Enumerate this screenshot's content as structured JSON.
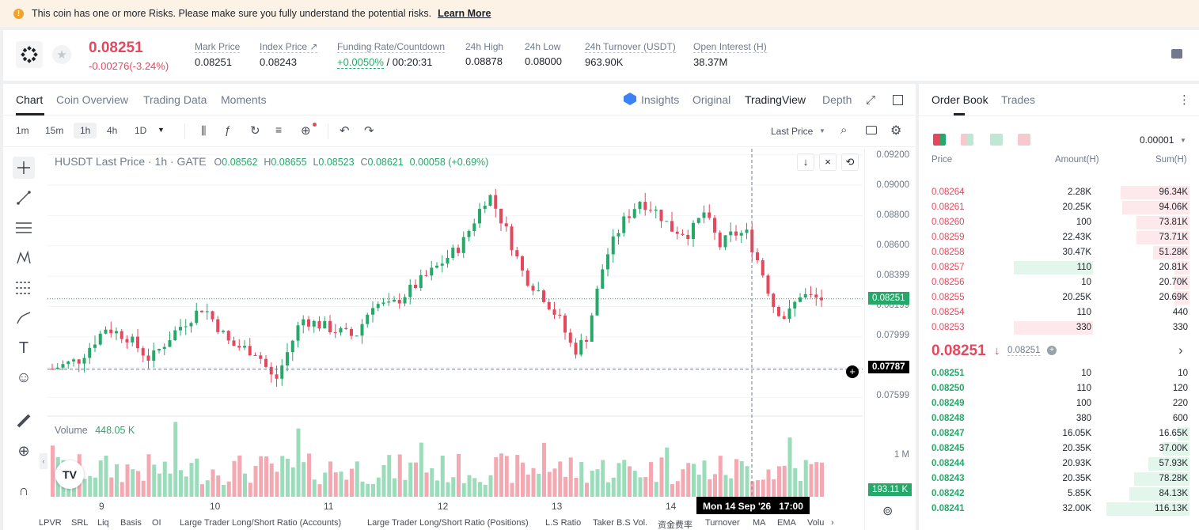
{
  "banner": {
    "message": "This coin has one or more Risks. Please make sure you fully understand the potential risks.",
    "link": "Learn More"
  },
  "ticker": {
    "price": "0.08251",
    "change": "-0.00276(-3.24%)",
    "stats": [
      {
        "label": "Mark Price",
        "value": "0.08251"
      },
      {
        "label": "Index Price ↗",
        "value": "0.08243"
      },
      {
        "label": "Funding Rate/Countdown",
        "value_rate": "+0.0050%",
        "value_countdown": "/ 00:20:31"
      },
      {
        "label": "24h High",
        "value": "0.08878"
      },
      {
        "label": "24h Low",
        "value": "0.08000"
      },
      {
        "label": "24h Turnover (USDT)",
        "value": "963.90K"
      },
      {
        "label": "Open Interest (H)",
        "value": "38.37M"
      }
    ]
  },
  "chart_tabs": [
    "Chart",
    "Coin Overview",
    "Trading Data",
    "Moments"
  ],
  "view_tabs": [
    "Insights",
    "Original",
    "TradingView",
    "Depth"
  ],
  "timeframes": [
    "1m",
    "15m",
    "1h",
    "4h",
    "1D"
  ],
  "price_type": "Last Price",
  "legend": {
    "symbol": "HUSDT Last Price · 1h · GATE",
    "o_label": "O",
    "o": "0.08562",
    "h_label": "H",
    "h": "0.08655",
    "l_label": "L",
    "l": "0.08523",
    "c_label": "C",
    "c": "0.08621",
    "chg": "0.00058 (+0.69%)"
  },
  "volume": {
    "label": "Volume",
    "value": "448.05 K",
    "axis_label": "1 M",
    "last_tag": "193.11 K"
  },
  "price_axis": [
    "0.09200",
    "0.09000",
    "0.08800",
    "0.08600",
    "0.08399",
    "0.08199",
    "0.07999",
    "0.07599"
  ],
  "last_price_tag": "0.08251",
  "crosshair_price": "0.07787",
  "x_axis": [
    "9",
    "10",
    "11",
    "12",
    "13",
    "14"
  ],
  "crosshair_time": "Mon 14 Sep '26   17:00",
  "indicators": [
    "LPVR",
    "SRL",
    "Liq",
    "Basis",
    "OI",
    "Large Trader Long/Short Ratio (Accounts)",
    "Large Trader Long/Short Ratio (Positions)",
    "L.S Ratio",
    "Taker B.S Vol.",
    "资金费率",
    "Turnover",
    "MA",
    "EMA",
    "Volu"
  ],
  "orderbook": {
    "tabs": [
      "Order Book",
      "Trades"
    ],
    "precision": "0.00001",
    "headers": [
      "Price",
      "Amount(H)",
      "Sum(H)"
    ],
    "asks": [
      {
        "price": "0.08264",
        "amount": "2.28K",
        "sum": "96.34K",
        "depth": 0.83,
        "amt_depth": 0
      },
      {
        "price": "0.08261",
        "amount": "20.25K",
        "sum": "94.06K",
        "depth": 0.81,
        "amt_depth": 0
      },
      {
        "price": "0.08260",
        "amount": "100",
        "sum": "73.81K",
        "depth": 0.64,
        "amt_depth": 0
      },
      {
        "price": "0.08259",
        "amount": "22.43K",
        "sum": "73.71K",
        "depth": 0.64,
        "amt_depth": 0
      },
      {
        "price": "0.08258",
        "amount": "30.47K",
        "sum": "51.28K",
        "depth": 0.44,
        "amt_depth": 0
      },
      {
        "price": "0.08257",
        "amount": "110",
        "sum": "20.81K",
        "depth": 0.18,
        "amt_depth": 0.49
      },
      {
        "price": "0.08256",
        "amount": "10",
        "sum": "20.70K",
        "depth": 0.18,
        "amt_depth": 0
      },
      {
        "price": "0.08255",
        "amount": "20.25K",
        "sum": "20.69K",
        "depth": 0.18,
        "amt_depth": 0
      },
      {
        "price": "0.08254",
        "amount": "110",
        "sum": "440",
        "depth": 0,
        "amt_depth": 0
      },
      {
        "price": "0.08253",
        "amount": "330",
        "sum": "330",
        "depth": 0,
        "amt_depth": 0.49
      }
    ],
    "mid_price": "0.08251",
    "mid_arrow": "↓",
    "mark_price": "0.08251",
    "bids": [
      {
        "price": "0.08251",
        "amount": "10",
        "sum": "10",
        "depth": 0
      },
      {
        "price": "0.08250",
        "amount": "110",
        "sum": "120",
        "depth": 0
      },
      {
        "price": "0.08249",
        "amount": "100",
        "sum": "220",
        "depth": 0
      },
      {
        "price": "0.08248",
        "amount": "380",
        "sum": "600",
        "depth": 0
      },
      {
        "price": "0.08247",
        "amount": "16.05K",
        "sum": "16.65K",
        "depth": 0.14
      },
      {
        "price": "0.08245",
        "amount": "20.35K",
        "sum": "37.00K",
        "depth": 0.32
      },
      {
        "price": "0.08244",
        "amount": "20.93K",
        "sum": "57.93K",
        "depth": 0.5
      },
      {
        "price": "0.08243",
        "amount": "20.35K",
        "sum": "78.28K",
        "depth": 0.67
      },
      {
        "price": "0.08242",
        "amount": "5.85K",
        "sum": "84.13K",
        "depth": 0.72
      },
      {
        "price": "0.08241",
        "amount": "32.00K",
        "sum": "116.13K",
        "depth": 1.0
      }
    ]
  },
  "colors": {
    "up": "#26a86a",
    "down": "#e5485d"
  }
}
